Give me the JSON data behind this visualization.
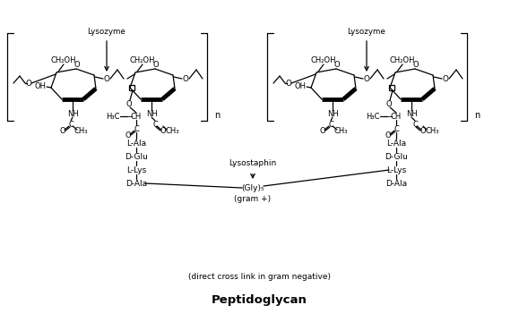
{
  "title": "Peptidoglycan",
  "subtitle": "(direct cross link in gram negative)",
  "bg_color": "#ffffff",
  "figsize": [
    5.79,
    3.6
  ],
  "dpi": 100,
  "lys_label": "Lysozyme",
  "lysostaphin_label": "Lysostaphin",
  "gly5_label": "(Gly)₅",
  "gram_pos": "(gram +)",
  "l_ala": "L-Ala",
  "d_glu": "D-Glu",
  "l_lys": "L-Lys",
  "d_ala": "D-Ala",
  "ch2oh": "CH₂OH",
  "nh": "NH",
  "ch3": "CH₃",
  "n_label": "n",
  "oh_label": "OH",
  "o_label": "O",
  "c_label": "C",
  "h3c_label": "H₃C",
  "ch_label": "CH"
}
